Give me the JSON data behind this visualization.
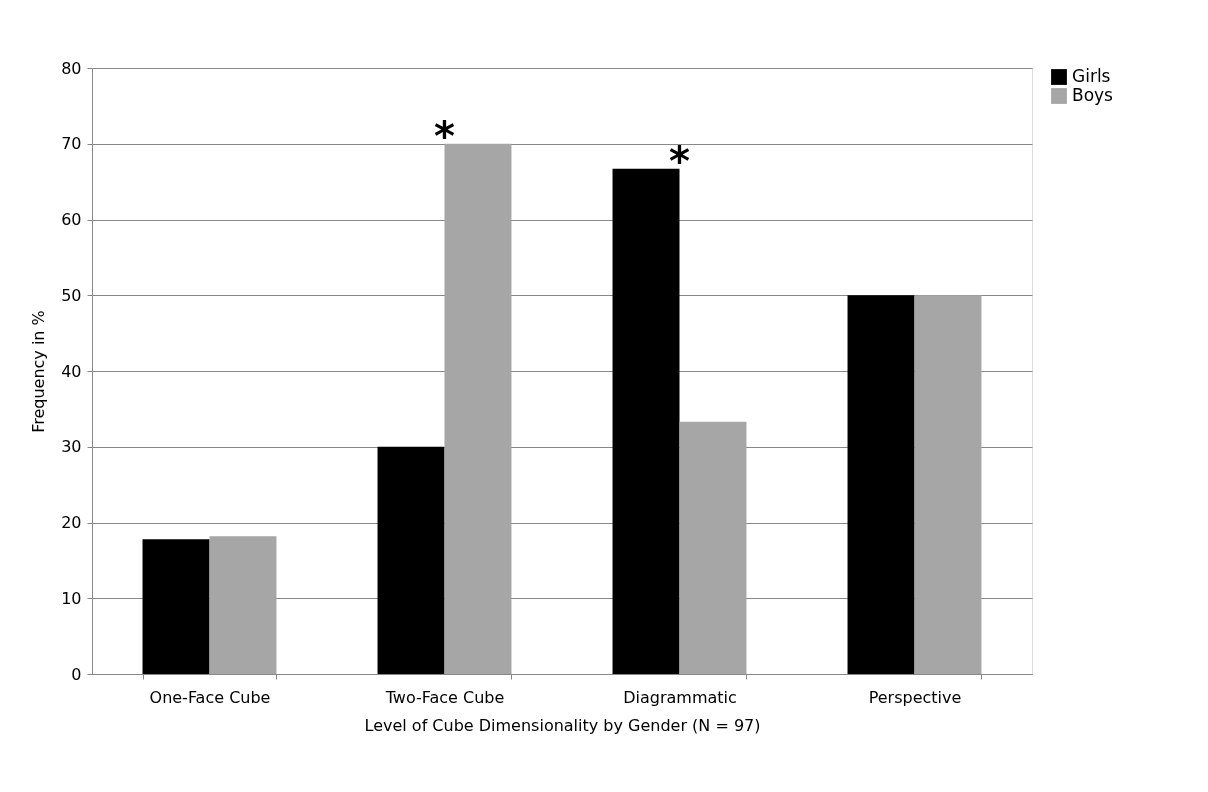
{
  "chart_data": {
    "type": "bar",
    "xlabel": "Level of Cube Dimensionality by Gender (N = 97)",
    "ylabel": "Frequency in %",
    "categories": [
      "One-Face Cube",
      "Two-Face Cube",
      "Diagrammatic",
      "Perspective"
    ],
    "series": [
      {
        "name": "Girls",
        "color": "#000000",
        "values": [
          17.8,
          30,
          66.7,
          50
        ]
      },
      {
        "name": "Boys",
        "color": "#a6a6a6",
        "values": [
          18.2,
          70,
          33.3,
          50
        ]
      }
    ],
    "ylim": [
      0,
      80
    ],
    "yticks": [
      0,
      10,
      20,
      30,
      40,
      50,
      60,
      70,
      80
    ],
    "grid": "y",
    "legend": "right",
    "annotations": [
      {
        "text": "*",
        "x": "Two-Face Cube",
        "y": 70
      },
      {
        "text": "*",
        "x": "Diagrammatic",
        "y": 66.7
      }
    ]
  }
}
